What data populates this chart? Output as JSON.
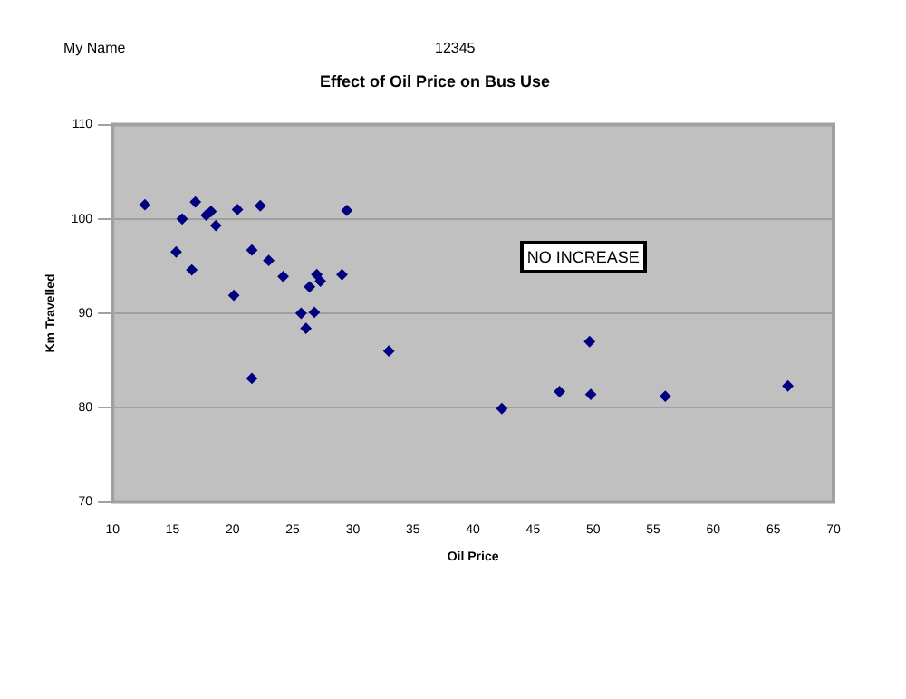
{
  "chart_data": {
    "type": "scatter",
    "title": "Effect of Oil Price on Bus Use",
    "xlabel": "Oil Price",
    "ylabel": "Km Travelled",
    "annotations": [
      "My Name",
      "12345",
      "NO INCREASE"
    ],
    "series": [
      {
        "color": "#000080",
        "x": [
          12.7,
          15.3,
          15.8,
          16.6,
          16.9,
          17.8,
          18.2,
          18.6,
          20.1,
          20.4,
          21.6,
          21.6,
          22.3,
          23.0,
          24.2,
          25.7,
          26.1,
          26.4,
          26.8,
          27.0,
          27.3,
          29.1,
          29.5,
          33.0,
          42.4,
          47.2,
          49.7,
          49.8,
          56.0,
          66.2
        ],
        "values": [
          101.5,
          96.5,
          100,
          94.6,
          101.8,
          100.4,
          100.8,
          99.3,
          91.9,
          101,
          96.7,
          83.1,
          101.4,
          95.6,
          93.9,
          90,
          88.4,
          92.8,
          90.1,
          94.1,
          93.4,
          94.1,
          100.9,
          86,
          79.9,
          81.7,
          87,
          81.4,
          81.2,
          82.3
        ]
      }
    ],
    "xlim": [
      10,
      70
    ],
    "xticks": [
      10,
      15,
      20,
      25,
      30,
      35,
      40,
      45,
      50,
      55,
      60,
      65,
      70
    ],
    "ylim": [
      70,
      110
    ],
    "yticks": [
      70,
      80,
      90,
      100,
      110
    ],
    "grid": "y",
    "legend": false,
    "marker": "diamond"
  }
}
